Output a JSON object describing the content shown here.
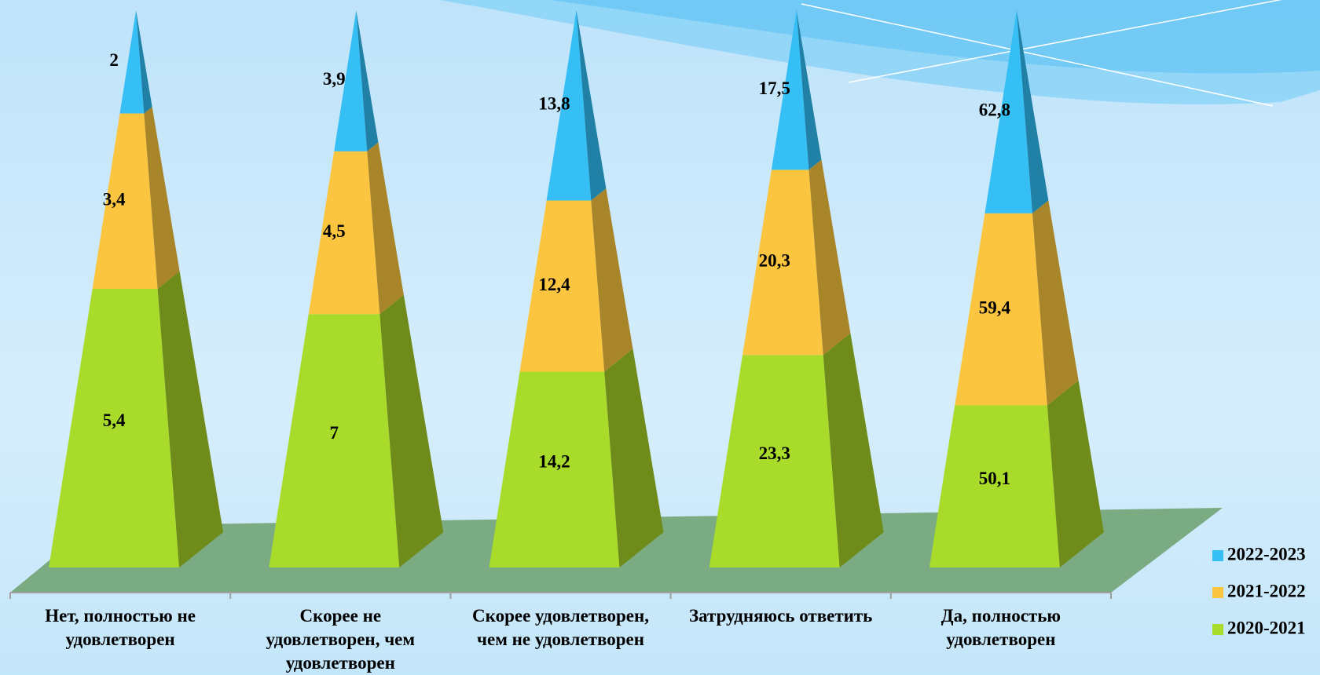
{
  "chart_data": {
    "type": "bar",
    "stacking": "percent",
    "shape": "pyramid",
    "categories": [
      "Нет, полностью не удовлетворен",
      "Скорее не удовлетворен, чем удовлетворен",
      "Скорее удовлетворен, чем не удовлетворен",
      "Затрудняюсь ответить",
      "Да, полностью удовлетворен"
    ],
    "series": [
      {
        "name": "2020-2021",
        "color": "#a9dc2a",
        "side_color": "#6f8c1b",
        "values": [
          5.4,
          7,
          14.2,
          23.3,
          50.1
        ],
        "value_labels": [
          "5,4",
          "7",
          "14,2",
          "23,3",
          "50,1"
        ]
      },
      {
        "name": "2021-2022",
        "color": "#fcc53f",
        "side_color": "#a9852a",
        "values": [
          3.4,
          4.5,
          12.4,
          20.3,
          59.4
        ],
        "value_labels": [
          "3,4",
          "4,5",
          "12,4",
          "20,3",
          "59,4"
        ]
      },
      {
        "name": "2022-2023",
        "color": "#35bff5",
        "side_color": "#2180a6",
        "values": [
          2,
          3.9,
          13.8,
          17.5,
          62.8
        ],
        "value_labels": [
          "2",
          "3,9",
          "13,8",
          "17,5",
          "62,8"
        ]
      }
    ],
    "legend": "right"
  }
}
